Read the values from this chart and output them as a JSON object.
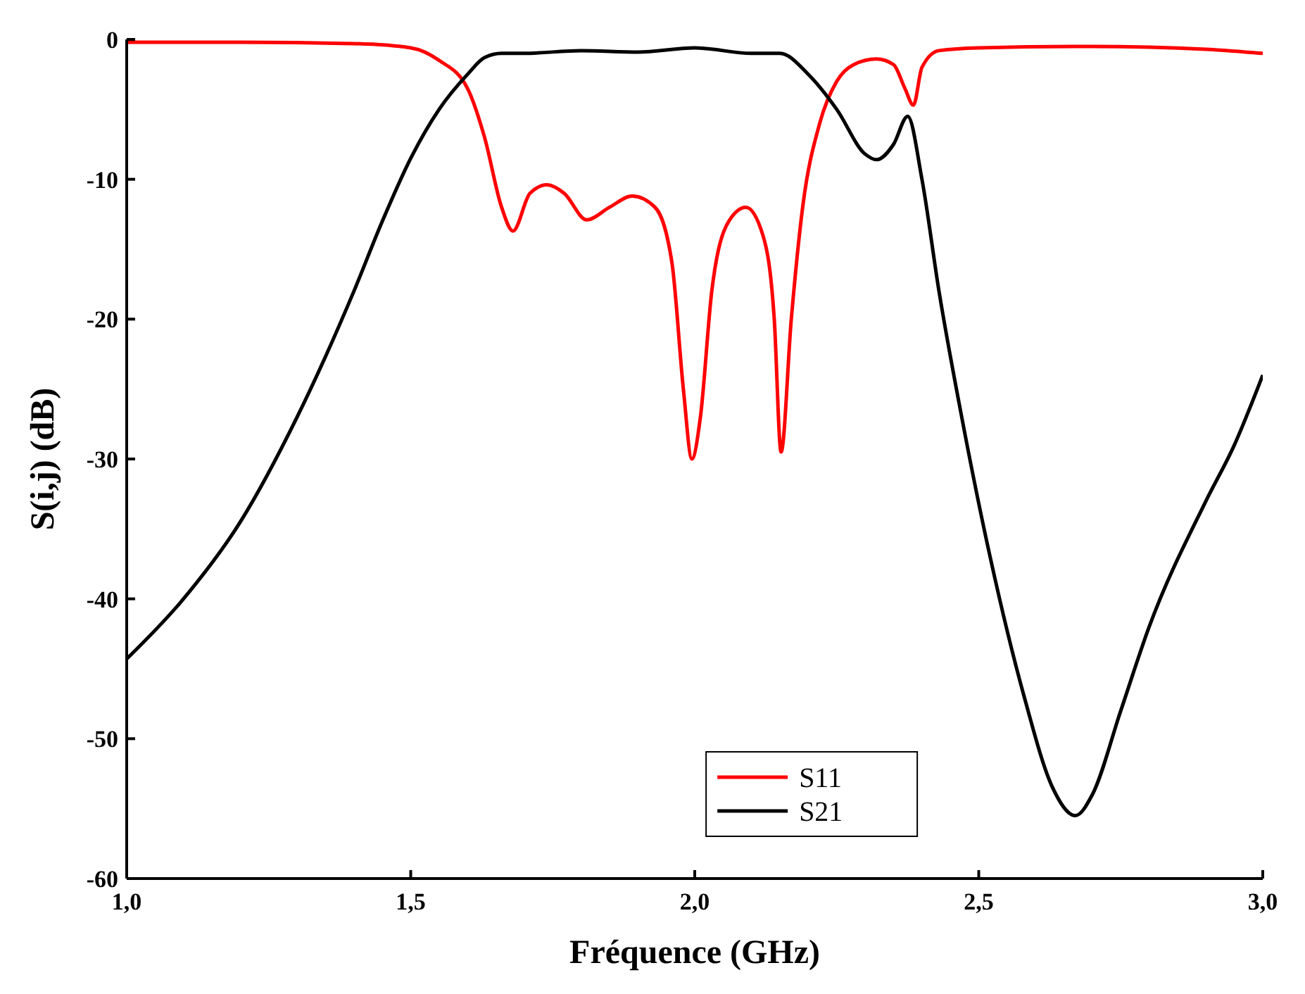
{
  "chart_data": {
    "type": "line",
    "xlabel": "Fréquence (GHz)",
    "ylabel": "S(i,j) (dB)",
    "xlim": [
      1.0,
      3.0
    ],
    "ylim": [
      -60,
      0
    ],
    "xticks": [
      {
        "value": 1.0,
        "label": "1,0"
      },
      {
        "value": 1.5,
        "label": "1,5"
      },
      {
        "value": 2.0,
        "label": "2,0"
      },
      {
        "value": 2.5,
        "label": "2,5"
      },
      {
        "value": 3.0,
        "label": "3,0"
      }
    ],
    "yticks": [
      -60,
      -50,
      -40,
      -30,
      -20,
      -10,
      0
    ],
    "grid": false,
    "legend": "bottom right",
    "marker": "none",
    "line_style": "solid",
    "series": [
      {
        "name": "S11",
        "color": "#ff0000",
        "x": [
          1.0,
          1.2,
          1.4,
          1.5,
          1.55,
          1.6,
          1.63,
          1.66,
          1.68,
          1.71,
          1.74,
          1.77,
          1.81,
          1.85,
          1.89,
          1.93,
          1.96,
          1.98,
          1.995,
          2.01,
          2.03,
          2.06,
          2.09,
          2.12,
          2.14,
          2.152,
          2.17,
          2.19,
          2.22,
          2.25,
          2.28,
          2.32,
          2.35,
          2.37,
          2.385,
          2.4,
          2.43,
          2.5,
          2.7,
          2.9,
          3.0
        ],
        "values": [
          -0.2,
          -0.2,
          -0.3,
          -0.6,
          -1.5,
          -3.5,
          -7,
          -12,
          -13.7,
          -11,
          -10.4,
          -11,
          -12.9,
          -12,
          -11.2,
          -12,
          -16,
          -25,
          -30,
          -27,
          -18,
          -13,
          -12,
          -14,
          -20,
          -29.5,
          -20,
          -12,
          -6,
          -3,
          -1.8,
          -1.4,
          -1.8,
          -3.5,
          -4.7,
          -2,
          -0.8,
          -0.6,
          -0.5,
          -0.7,
          -1.0
        ]
      },
      {
        "name": "S21",
        "color": "#000000",
        "x": [
          1.0,
          1.1,
          1.2,
          1.3,
          1.4,
          1.45,
          1.5,
          1.55,
          1.6,
          1.63,
          1.66,
          1.7,
          1.8,
          1.9,
          2.0,
          2.1,
          2.15,
          2.2,
          2.25,
          2.3,
          2.32,
          2.35,
          2.375,
          2.4,
          2.43,
          2.47,
          2.52,
          2.58,
          2.63,
          2.67,
          2.7,
          2.75,
          2.8,
          2.9,
          2.95,
          3.0
        ],
        "values": [
          -44.3,
          -40,
          -34.5,
          -27,
          -18,
          -13,
          -8.5,
          -5,
          -2.5,
          -1.3,
          -1.0,
          -1.0,
          -0.8,
          -0.9,
          -0.6,
          -1.0,
          -1.0,
          -2.5,
          -5,
          -8.2,
          -8.6,
          -7.5,
          -5.5,
          -10,
          -18,
          -27,
          -37,
          -47,
          -53.5,
          -55.5,
          -54,
          -48,
          -42,
          -33,
          -29,
          -24
        ]
      }
    ]
  }
}
